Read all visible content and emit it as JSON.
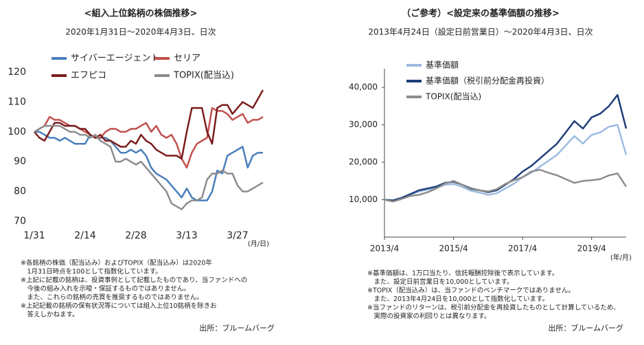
{
  "chart_data": [
    {
      "type": "line",
      "title": "<組入上位銘柄の株価推移>",
      "subtitle": "2020年1月31日～2020年4月3日、日次",
      "categories": [
        "1/31",
        null,
        null,
        null,
        null,
        null,
        null,
        null,
        null,
        null,
        "2/14",
        null,
        null,
        null,
        null,
        null,
        null,
        null,
        null,
        null,
        "2/28",
        null,
        null,
        null,
        null,
        null,
        null,
        null,
        null,
        null,
        "3/13",
        null,
        null,
        null,
        null,
        null,
        null,
        null,
        null,
        null,
        "3/27",
        null,
        null,
        null,
        null,
        null
      ],
      "series": [
        {
          "name": "サイバーエージェント",
          "color": "#4a7ebb",
          "values": [
            100,
            100,
            99,
            98,
            98,
            97,
            98,
            97,
            96,
            96,
            96,
            99,
            98,
            98,
            98,
            97,
            95,
            93,
            93,
            94,
            93,
            94,
            92,
            88,
            86,
            85,
            84,
            82,
            80,
            78,
            81,
            78,
            77,
            77,
            77,
            80,
            87,
            86,
            92,
            93,
            94,
            95,
            88,
            92,
            93,
            93
          ]
        },
        {
          "name": "セリア",
          "color": "#c0504d",
          "values": [
            100,
            101,
            102,
            105,
            104,
            104,
            103,
            102,
            102,
            101,
            100,
            99,
            98,
            98,
            100,
            101,
            101,
            100,
            100,
            101,
            101,
            102,
            103,
            100,
            102,
            99,
            98,
            99,
            96,
            91,
            88,
            93,
            96,
            97,
            98,
            108,
            107,
            107,
            106,
            104,
            105,
            106,
            103,
            104,
            104,
            105
          ]
        },
        {
          "name": "エフピコ",
          "color": "#7b1c1c",
          "values": [
            100,
            98,
            97,
            100,
            103,
            103,
            102,
            102,
            102,
            101,
            101,
            99,
            98,
            99,
            97,
            97,
            96,
            95,
            95,
            97,
            96,
            99,
            97,
            96,
            94,
            93,
            92,
            92,
            92,
            91,
            100,
            108,
            108,
            108,
            100,
            96,
            108,
            109,
            109,
            106,
            108,
            110,
            109,
            108,
            111,
            114
          ]
        },
        {
          "name": "TOPIX(配当込)",
          "color": "#8c8c8c",
          "values": [
            100,
            101,
            102,
            102,
            102,
            102,
            101,
            100,
            100,
            99,
            99,
            98,
            99,
            97,
            96,
            95,
            90,
            90,
            91,
            90,
            89,
            90,
            88,
            86,
            84,
            82,
            80,
            76,
            75,
            74,
            76,
            77,
            77,
            78,
            84,
            86,
            86,
            87,
            86,
            86,
            82,
            80,
            80,
            81,
            82,
            83
          ]
        }
      ],
      "ylim": [
        70,
        120
      ],
      "yticks": [
        70,
        80,
        90,
        100,
        110,
        120
      ],
      "x_unit": "(月/日)",
      "axis_lines": false,
      "legend": "upper left",
      "notes": [
        "※各銘柄の株価（配当込み）およびTOPIX（配当込み）は2020年",
        "　1月31日時点を100として指数化しています。",
        "※上記に記載の銘柄は、投資事例として記載したものであり、当ファンドへの",
        "　今後の組み入れを示唆・保証するものではありません。",
        "　また、これらの銘柄の売買を推奨するものではありません。",
        "※上記記載の銘柄の保有状況等については組入上位10銘柄を除きお",
        "　答えしかねます。"
      ],
      "source": "出所：ブルームバーグ"
    },
    {
      "type": "line",
      "title": "（ご参考）<設定来の基準価額の推移>",
      "subtitle": "2013年4月24日（設定日前営業日）～2020年4月3日、日次",
      "categories": [
        "2013/4",
        null,
        null,
        null,
        null,
        null,
        null,
        null,
        "2015/4",
        null,
        null,
        null,
        null,
        null,
        null,
        null,
        "2017/4",
        null,
        null,
        null,
        null,
        null,
        null,
        null,
        "2019/4",
        null,
        null,
        null,
        null
      ],
      "series": [
        {
          "name": "基準価額",
          "color": "#9dbbe0",
          "values": [
            10000,
            9800,
            10400,
            11300,
            12200,
            12700,
            13100,
            14000,
            14200,
            13400,
            12400,
            11900,
            11300,
            11700,
            13000,
            14300,
            16000,
            17200,
            18800,
            20400,
            22000,
            24500,
            27000,
            25000,
            27300,
            28000,
            29500,
            30000,
            22000
          ]
        },
        {
          "name": "基準価額（税引前分配金再投資）",
          "color": "#1f3f7a",
          "values": [
            10000,
            9800,
            10500,
            11500,
            12500,
            13000,
            13500,
            14500,
            14800,
            14000,
            13000,
            12500,
            12000,
            12500,
            14000,
            15500,
            17500,
            19000,
            21000,
            23000,
            25000,
            28000,
            31000,
            29000,
            32000,
            33000,
            35000,
            38000,
            29000
          ]
        },
        {
          "name": "TOPIX(配当込)",
          "color": "#8c8c8c",
          "values": [
            10000,
            9500,
            10200,
            11000,
            11300,
            12000,
            13000,
            14300,
            15000,
            14000,
            12800,
            12500,
            12200,
            12800,
            14200,
            15200,
            16000,
            17500,
            18000,
            17200,
            16500,
            15500,
            14500,
            15000,
            15200,
            15500,
            16500,
            17000,
            13500
          ]
        }
      ],
      "ylim": [
        0,
        45000
      ],
      "yticks": [
        {
          "value": 10000,
          "label": "10,000"
        },
        {
          "value": 20000,
          "label": "20,000"
        },
        {
          "value": 30000,
          "label": "30,000"
        },
        {
          "value": 40000,
          "label": "40,000"
        }
      ],
      "x_unit": "(年/月)",
      "axis_lines": true,
      "legend": "upper left",
      "notes": [
        "※基準価額は、1万口当たり、信託報酬控除後で表示しています。",
        "　また、設定日前営業日を10,000としています。",
        "※TOPIX（配当込み）は、当ファンドのベンチマークではありません。",
        "　また、2013年4月24日を10,000として指数化しています。",
        "※当ファンドのリターンは、税引前分配金を再投資したものとして計算しているため、",
        "　実際の投資家の利回りとは異なります。"
      ],
      "source": "出所：ブルームバーグ"
    }
  ]
}
